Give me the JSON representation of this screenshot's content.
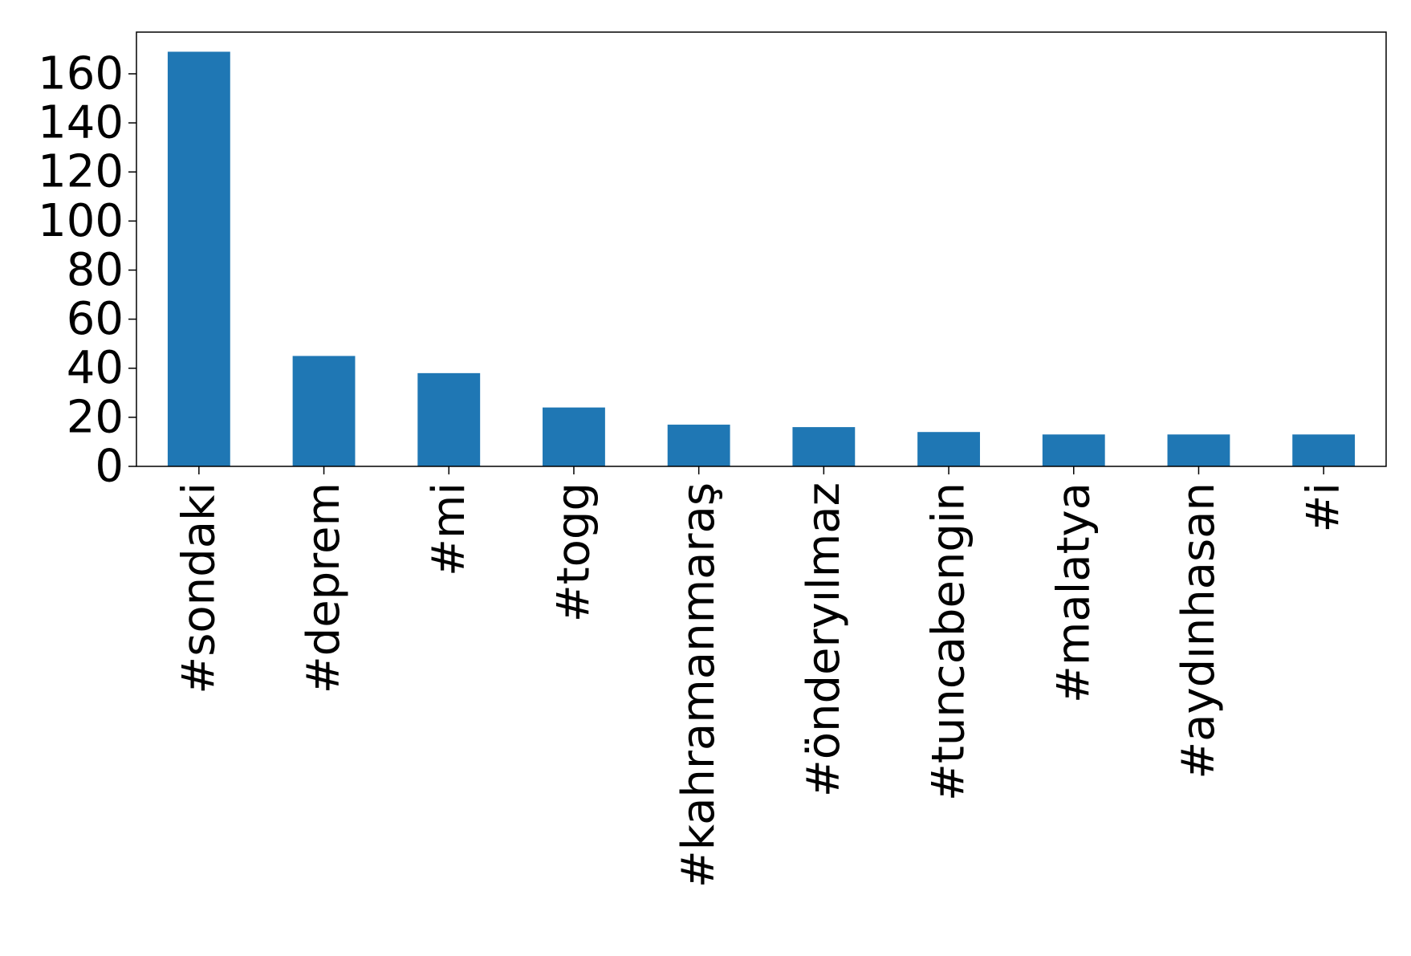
{
  "chart_data": {
    "type": "bar",
    "categories": [
      "#sondaki",
      "#deprem",
      "#mi",
      "#togg",
      "#kahramanmaraş",
      "#önderyılmaz",
      "#tuncabengin",
      "#malatya",
      "#aydınhasan",
      "#i"
    ],
    "values": [
      169,
      45,
      38,
      24,
      17,
      16,
      14,
      13,
      13,
      13
    ],
    "title": "",
    "xlabel": "",
    "ylabel": "",
    "ylim": [
      0,
      177
    ],
    "yticks": [
      0,
      20,
      40,
      60,
      80,
      100,
      120,
      140,
      160
    ],
    "grid": false,
    "legend": "none",
    "bar_color": "#1f77b4"
  }
}
